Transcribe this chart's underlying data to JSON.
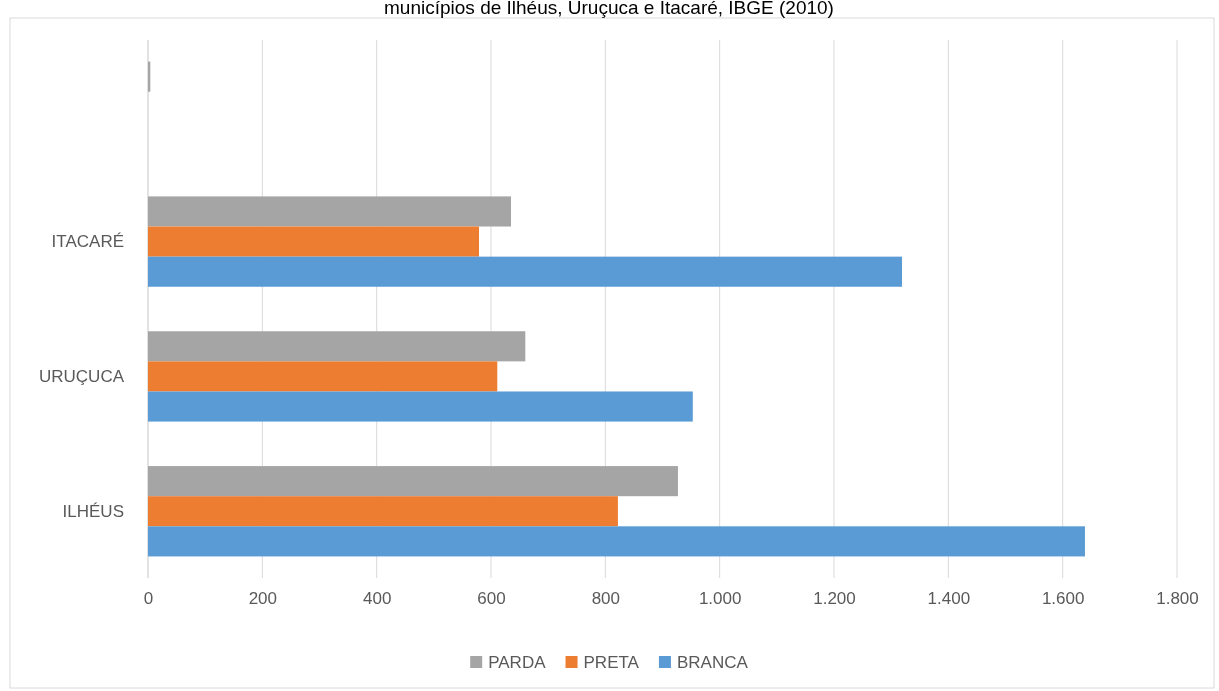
{
  "chart_data": {
    "type": "bar",
    "orientation": "horizontal",
    "title": "municípios de Ilhéus, Uruçuca e Itacaré, IBGE (2010)",
    "categories": [
      null,
      "ITACARÉ",
      "URUÇUCA",
      "ILHÉUS"
    ],
    "series": [
      {
        "name": "PARDA",
        "color": "#a5a5a5",
        "values": [
          4,
          635,
          660,
          927
        ]
      },
      {
        "name": "PRETA",
        "color": "#ed7d31",
        "values": [
          null,
          579,
          611,
          822
        ]
      },
      {
        "name": "BRANCA",
        "color": "#5b9bd5",
        "values": [
          null,
          1319,
          953,
          1639
        ]
      }
    ],
    "xlim": [
      0,
      1800
    ],
    "xticks": [
      0,
      200,
      400,
      600,
      {
        "value": 800,
        "label": "800"
      },
      {
        "value": 1000,
        "label": "1.000"
      },
      {
        "value": 1200,
        "label": "1.200"
      },
      {
        "value": 1400,
        "label": "1.400"
      },
      {
        "value": 1600,
        "label": "1.600"
      },
      {
        "value": 1800,
        "label": "1.800"
      }
    ],
    "grid": "x",
    "legend": "bottom"
  }
}
